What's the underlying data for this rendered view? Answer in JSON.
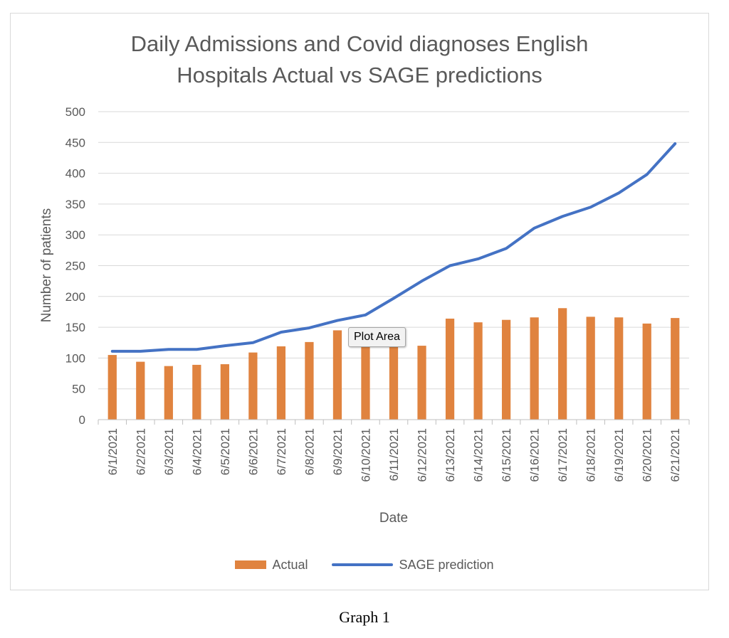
{
  "chart_data": {
    "type": "bar",
    "title_line1": "Daily Admissions and  Covid diagnoses English",
    "title_line2": "Hospitals Actual vs SAGE predictions",
    "xlabel": "Date",
    "ylabel": "Number of patients",
    "ylim": [
      0,
      500
    ],
    "yticks": [
      0,
      50,
      100,
      150,
      200,
      250,
      300,
      350,
      400,
      450,
      500
    ],
    "grid": true,
    "legend_position": "bottom",
    "categories": [
      "6/1/2021",
      "6/2/2021",
      "6/3/2021",
      "6/4/2021",
      "6/5/2021",
      "6/6/2021",
      "6/7/2021",
      "6/8/2021",
      "6/9/2021",
      "6/10/2021",
      "6/11/2021",
      "6/12/2021",
      "6/13/2021",
      "6/14/2021",
      "6/15/2021",
      "6/16/2021",
      "6/17/2021",
      "6/18/2021",
      "6/19/2021",
      "6/20/2021",
      "6/21/2021"
    ],
    "series": [
      {
        "name": "Actual",
        "type": "bar",
        "color": "#e0833f",
        "values": [
          105,
          94,
          87,
          89,
          90,
          109,
          119,
          126,
          145,
          120,
          120,
          120,
          164,
          158,
          162,
          166,
          181,
          167,
          166,
          156,
          165
        ]
      },
      {
        "name": "SAGE prediction",
        "type": "line",
        "color": "#4472c4",
        "values": [
          111,
          111,
          114,
          114,
          120,
          125,
          142,
          149,
          161,
          170,
          197,
          225,
          250,
          261,
          278,
          311,
          330,
          345,
          368,
          398,
          448
        ]
      }
    ]
  },
  "tooltip": {
    "text": "Plot Area"
  },
  "caption": {
    "text": "Graph 1"
  }
}
